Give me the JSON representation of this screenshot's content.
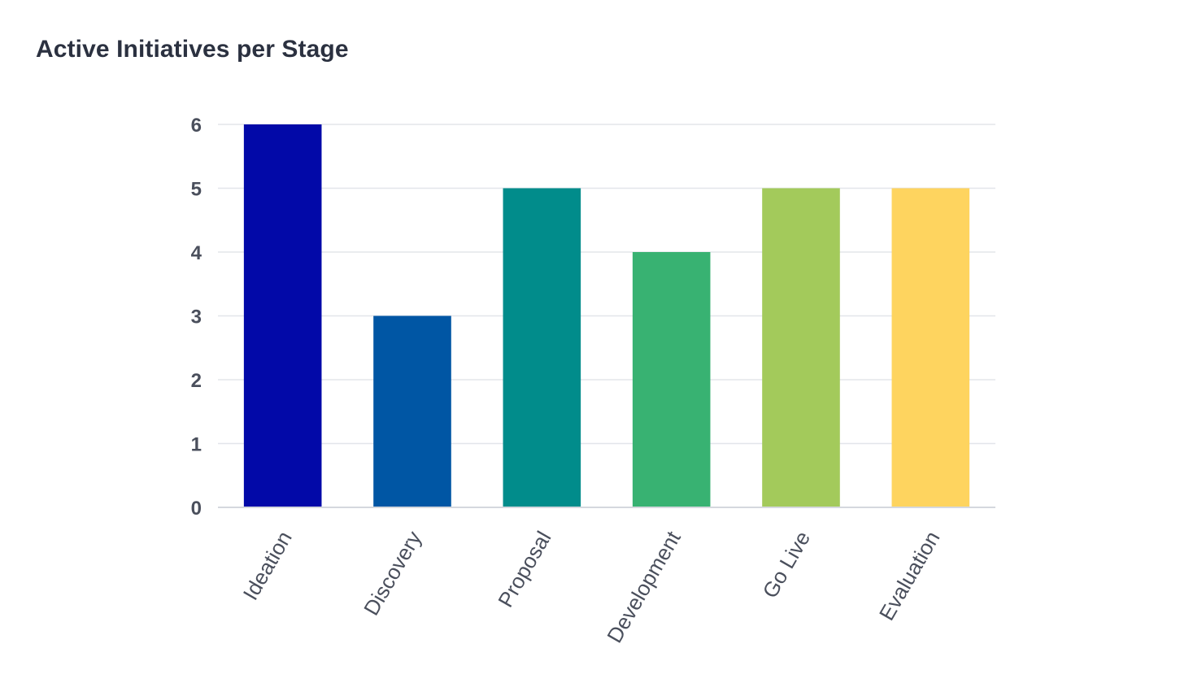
{
  "chart_data": {
    "type": "bar",
    "title": "Active Initiatives per Stage",
    "xlabel": "",
    "ylabel": "",
    "categories": [
      "Ideation",
      "Discovery",
      "Proposal",
      "Development",
      "Go Live",
      "Evaluation"
    ],
    "values": [
      6,
      3,
      5,
      4,
      5,
      5
    ],
    "colors": [
      "#0209a8",
      "#0056a4",
      "#018c8b",
      "#38b272",
      "#a3ca5b",
      "#fed45f"
    ],
    "ylim": [
      0,
      6
    ],
    "yticks": [
      0,
      1,
      2,
      3,
      4,
      5,
      6
    ],
    "grid": true,
    "legend": "none"
  }
}
